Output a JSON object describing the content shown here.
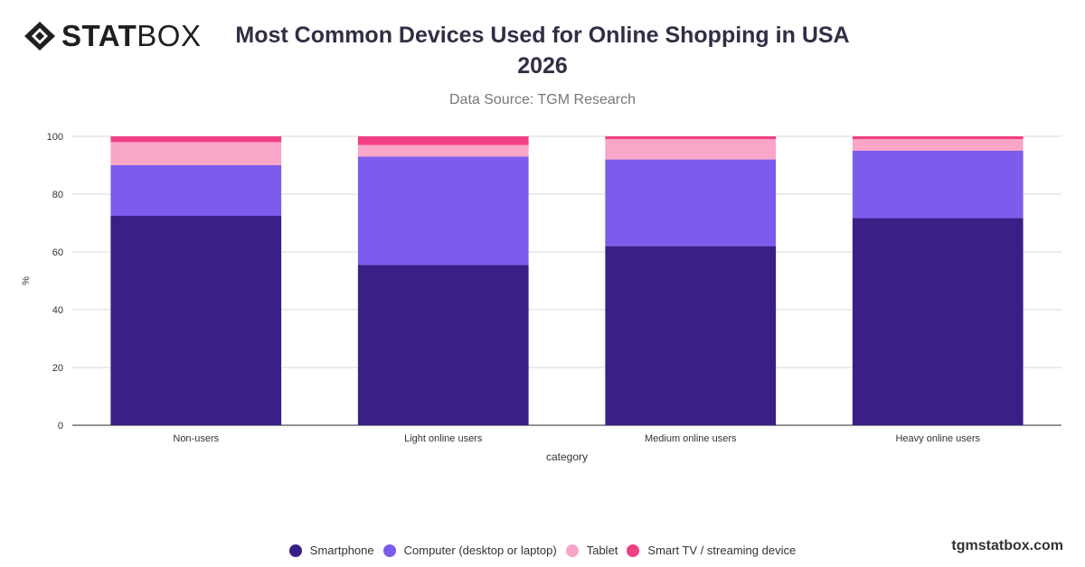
{
  "brand": {
    "logo_bold": "STAT",
    "logo_light": "BOX",
    "watermark": "tgmstatbox.com"
  },
  "chart_data": {
    "type": "bar",
    "stacked": true,
    "title": "Most Common Devices Used for Online Shopping in USA 2026",
    "subtitle": "Data Source: TGM Research",
    "xlabel": "category",
    "ylabel": "%",
    "ylim": [
      0,
      100
    ],
    "yticks": [
      0,
      20,
      40,
      60,
      80,
      100
    ],
    "grid": true,
    "legend_position": "bottom",
    "categories": [
      "Non-users",
      "Light online users",
      "Medium online users",
      "Heavy online users"
    ],
    "series": [
      {
        "name": "Smartphone",
        "color": "#3a1f86",
        "values": [
          72.5,
          55.5,
          62,
          71.7
        ]
      },
      {
        "name": "Computer (desktop or laptop)",
        "color": "#7c5cec",
        "values": [
          17.5,
          37.5,
          30,
          23.3
        ]
      },
      {
        "name": "Tablet",
        "color": "#f9a6c9",
        "values": [
          8,
          4,
          7,
          4
        ]
      },
      {
        "name": "Smart TV / streaming device",
        "color": "#f03f82",
        "values": [
          2,
          3,
          1,
          1
        ]
      }
    ]
  }
}
